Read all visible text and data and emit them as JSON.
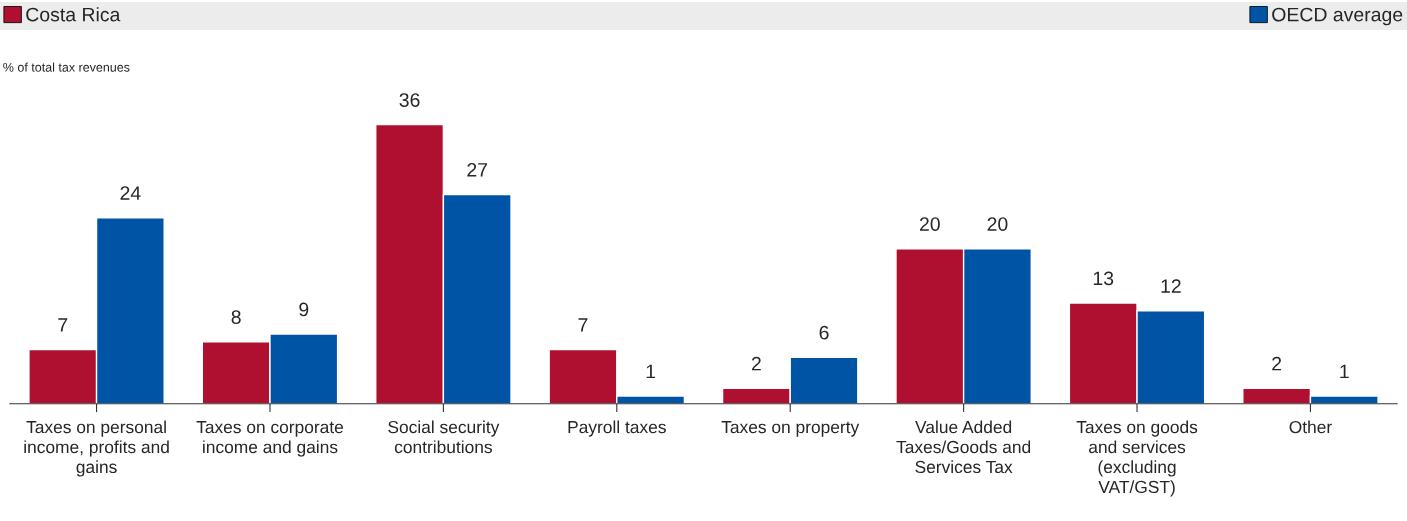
{
  "chart_data": {
    "type": "bar",
    "ylabel": "% of total tax revenues",
    "categories": [
      "Taxes on personal\nincome, profits and\ngains",
      "Taxes on corporate\nincome and gains",
      "Social security\ncontributions",
      "Payroll taxes",
      "Taxes on property",
      "Value Added\nTaxes/Goods and\nServices Tax",
      "Taxes on goods\nand services\n(excluding\nVAT/GST)",
      "Other"
    ],
    "series": [
      {
        "name": "Costa Rica",
        "color": "#b0102f",
        "values": [
          7,
          8,
          36,
          7,
          2,
          20,
          13,
          2
        ]
      },
      {
        "name": "OECD average",
        "color": "#0054a6",
        "values": [
          24,
          9,
          27,
          1,
          6,
          20,
          12,
          1
        ]
      }
    ],
    "relative": false,
    "data_labels": true,
    "legend": "top",
    "grid": false
  }
}
